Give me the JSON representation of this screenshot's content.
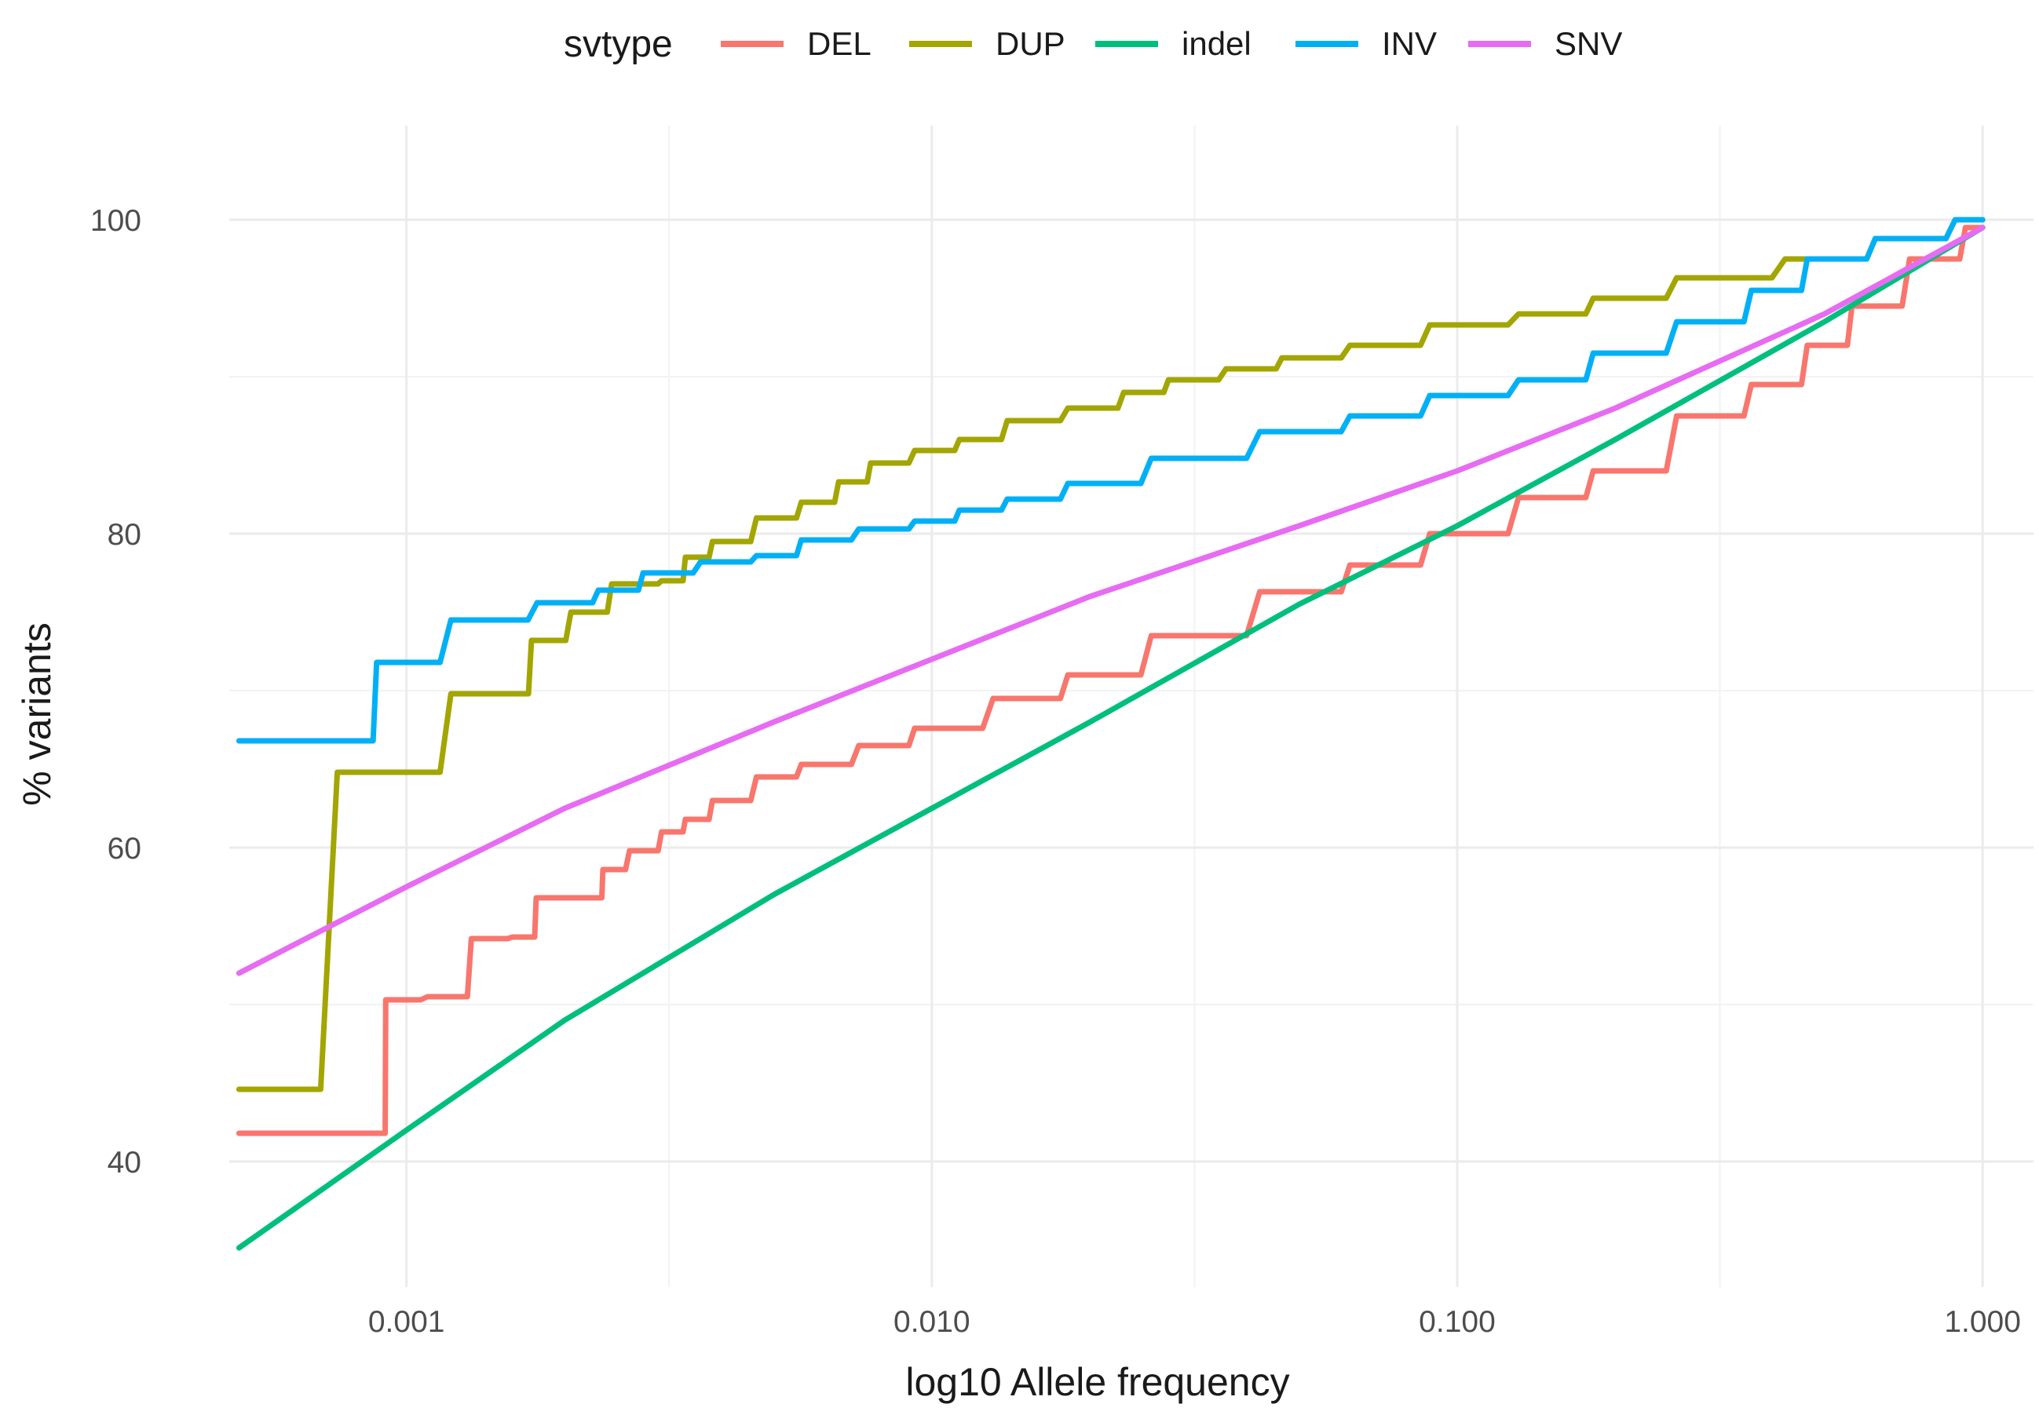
{
  "chart_data": {
    "type": "line",
    "xlabel": "log10 Allele frequency",
    "ylabel": "% variants",
    "x_scale": "log10",
    "xlim": [
      0.00046,
      1.25
    ],
    "ylim": [
      32,
      106
    ],
    "x_ticks": [
      {
        "value": 0.001,
        "label": "0.001"
      },
      {
        "value": 0.01,
        "label": "0.010"
      },
      {
        "value": 0.1,
        "label": "0.100"
      },
      {
        "value": 1.0,
        "label": "1.000"
      }
    ],
    "y_ticks": [
      {
        "value": 40,
        "label": "40"
      },
      {
        "value": 60,
        "label": "60"
      },
      {
        "value": 80,
        "label": "80"
      },
      {
        "value": 100,
        "label": "100"
      }
    ],
    "grid": true,
    "legend": {
      "title": "svtype",
      "position": "top"
    },
    "series": [
      {
        "name": "DEL",
        "color": "#F8766D",
        "step": true,
        "x": [
          0.00048,
          0.0009,
          0.00092,
          0.0012,
          0.0014,
          0.0017,
          0.0018,
          0.0023,
          0.0024,
          0.0028,
          0.0032,
          0.0035,
          0.004,
          0.005,
          0.006,
          0.008,
          0.01,
          0.015,
          0.02,
          0.03,
          0.05,
          0.07,
          0.1,
          0.15,
          0.2,
          0.3,
          0.4,
          0.5,
          0.6,
          0.8,
          1.0
        ],
        "y": [
          41.8,
          41.8,
          50.3,
          50.5,
          54.2,
          54.3,
          56.8,
          56.8,
          58.6,
          59.8,
          61.0,
          61.8,
          63.0,
          64.5,
          65.3,
          66.5,
          67.6,
          69.5,
          71.0,
          73.5,
          76.3,
          78.0,
          80.0,
          82.3,
          84.0,
          87.5,
          89.5,
          92.0,
          94.5,
          97.5,
          99.5
        ]
      },
      {
        "name": "DUP",
        "color": "#A3A500",
        "step": true,
        "x": [
          0.00048,
          0.00092,
          0.0014,
          0.0016,
          0.0018,
          0.0022,
          0.0026,
          0.0028,
          0.0032,
          0.0035,
          0.004,
          0.005,
          0.006,
          0.007,
          0.008,
          0.01,
          0.012,
          0.015,
          0.02,
          0.025,
          0.03,
          0.04,
          0.05,
          0.07,
          0.1,
          0.15,
          0.2,
          0.3,
          0.5,
          0.7,
          1.0
        ],
        "y": [
          44.6,
          64.8,
          69.8,
          69.8,
          73.2,
          75.0,
          76.8,
          76.8,
          77.0,
          78.5,
          79.5,
          81.0,
          82.0,
          83.3,
          84.5,
          85.3,
          86.0,
          87.2,
          88.0,
          89.0,
          89.8,
          90.5,
          91.2,
          92.0,
          93.3,
          94.0,
          95.0,
          96.3,
          97.5,
          98.8,
          100.0
        ]
      },
      {
        "name": "indel",
        "color": "#00BF7D",
        "step": false,
        "x": [
          0.00048,
          0.001,
          0.002,
          0.005,
          0.01,
          0.02,
          0.05,
          0.1,
          0.2,
          0.5,
          1.0
        ],
        "y": [
          34.5,
          42.0,
          49.0,
          57.0,
          62.5,
          68.0,
          75.5,
          80.5,
          86.0,
          93.5,
          99.5
        ]
      },
      {
        "name": "INV",
        "color": "#00B0F6",
        "step": true,
        "x": [
          0.00048,
          0.0008,
          0.00092,
          0.0014,
          0.002,
          0.0025,
          0.003,
          0.004,
          0.005,
          0.006,
          0.008,
          0.01,
          0.012,
          0.015,
          0.02,
          0.03,
          0.05,
          0.07,
          0.1,
          0.15,
          0.2,
          0.3,
          0.4,
          0.5,
          0.7,
          1.0
        ],
        "y": [
          66.8,
          66.8,
          71.8,
          74.5,
          75.6,
          76.4,
          77.5,
          78.2,
          78.6,
          79.6,
          80.3,
          80.8,
          81.5,
          82.2,
          83.2,
          84.8,
          86.5,
          87.5,
          88.8,
          89.8,
          91.5,
          93.5,
          95.5,
          97.5,
          98.8,
          100.0
        ]
      },
      {
        "name": "SNV",
        "color": "#E76BF3",
        "step": false,
        "x": [
          0.00048,
          0.001,
          0.002,
          0.005,
          0.01,
          0.02,
          0.05,
          0.1,
          0.2,
          0.5,
          1.0
        ],
        "y": [
          52.0,
          57.5,
          62.5,
          68.0,
          72.0,
          76.0,
          80.5,
          84.0,
          88.0,
          94.0,
          99.5
        ]
      }
    ]
  }
}
